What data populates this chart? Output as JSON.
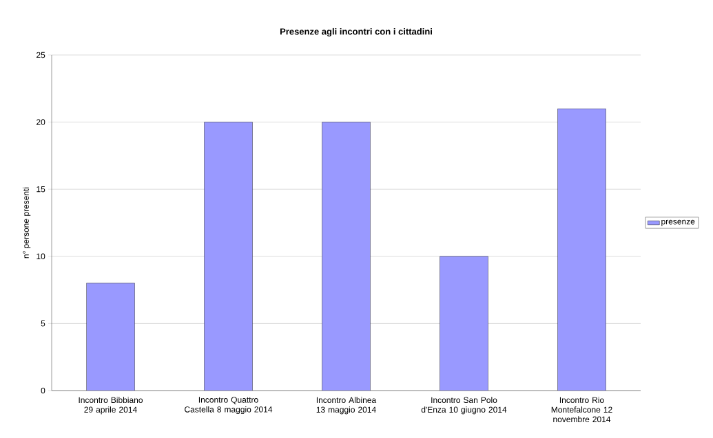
{
  "chart_data": {
    "type": "bar",
    "title": "Presenze agli incontri con i cittadini",
    "ylabel": "n° persone presenti",
    "categories": [
      "Incontro Bibbiano 29 aprile 2014",
      "Incontro Quattro Castella 8 maggio 2014",
      "Incontro Albinea 13 maggio 2014",
      "Incontro San Polo d'Enza 10 giugno 2014",
      "Incontro Rio Montefalcone 12 novembre 2014"
    ],
    "series": [
      {
        "name": "presenze",
        "color": "#9999ff",
        "values": [
          8,
          20,
          20,
          10,
          21
        ]
      }
    ],
    "ylim": [
      0,
      25
    ],
    "yticks": [
      0,
      5,
      10,
      15,
      20,
      25
    ],
    "grid": "y",
    "legend": "right"
  }
}
